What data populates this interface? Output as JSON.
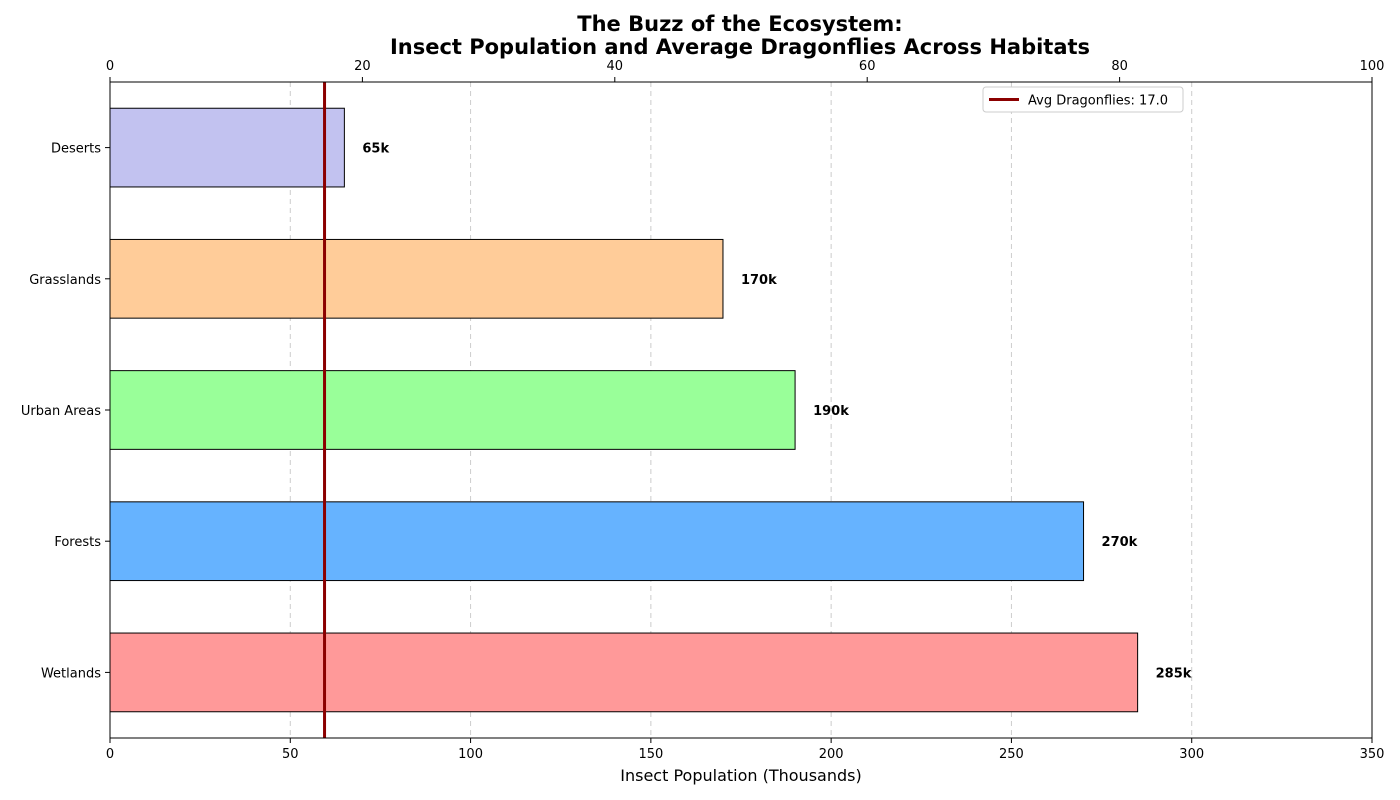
{
  "chart_data": {
    "type": "bar",
    "orientation": "horizontal",
    "title_line1": "The Buzz of the Ecosystem:",
    "title_line2": "Insect Population and Average Dragonflies Across Habitats",
    "xlabel": "Insect Population (Thousands)",
    "categories": [
      "Wetlands",
      "Forests",
      "Urban Areas",
      "Grasslands",
      "Deserts"
    ],
    "values": [
      285,
      270,
      190,
      170,
      65
    ],
    "value_labels": [
      "285k",
      "270k",
      "190k",
      "170k",
      "65k"
    ],
    "colors": [
      "#ff9999",
      "#66b3ff",
      "#99ff99",
      "#ffcc99",
      "#c2c2f0"
    ],
    "xlim": [
      0,
      350
    ],
    "xticks": [
      0,
      50,
      100,
      150,
      200,
      250,
      300,
      350
    ],
    "secondary_axis": {
      "position": "top",
      "xlim": [
        0,
        100
      ],
      "xticks": [
        0,
        20,
        40,
        60,
        80,
        100
      ]
    },
    "reference_line": {
      "label": "Avg Dragonflies: 17.0",
      "value_secondary": 17.0,
      "color": "#8b0000"
    },
    "grid": "vertical-dashed",
    "legend_position": "top-right"
  }
}
